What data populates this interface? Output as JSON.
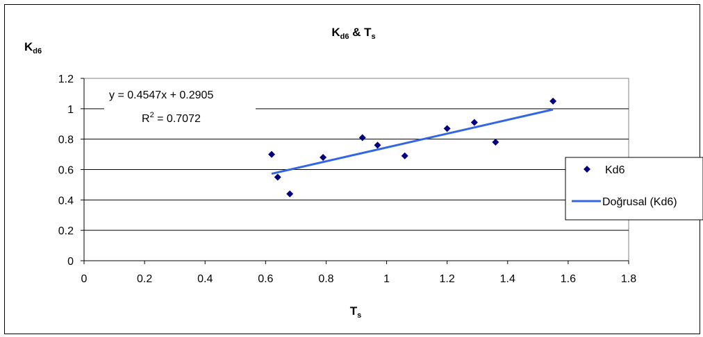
{
  "chart_data": {
    "type": "scatter",
    "title": {
      "main": "K",
      "sub": "d6",
      "rest": " & T",
      "sub2": "s"
    },
    "ylabel": {
      "main": "K",
      "sub": "d6"
    },
    "xlabel": {
      "main": "T",
      "sub": "s"
    },
    "xlim": [
      0,
      1.8
    ],
    "ylim": [
      0,
      1.2
    ],
    "xticks": [
      "0",
      "0.2",
      "0.4",
      "0.6",
      "0.8",
      "1",
      "1.2",
      "1.4",
      "1.6",
      "1.8"
    ],
    "yticks": [
      "0",
      "0.2",
      "0.4",
      "0.6",
      "0.8",
      "1",
      "1.2"
    ],
    "grid": "horizontal",
    "series": [
      {
        "name": "Kd6",
        "color": "#000080",
        "marker": "diamond",
        "points": [
          {
            "x": 0.62,
            "y": 0.7
          },
          {
            "x": 0.64,
            "y": 0.55
          },
          {
            "x": 0.68,
            "y": 0.44
          },
          {
            "x": 0.79,
            "y": 0.68
          },
          {
            "x": 0.92,
            "y": 0.81
          },
          {
            "x": 0.97,
            "y": 0.76
          },
          {
            "x": 1.06,
            "y": 0.69
          },
          {
            "x": 1.2,
            "y": 0.87
          },
          {
            "x": 1.29,
            "y": 0.91
          },
          {
            "x": 1.36,
            "y": 0.78
          },
          {
            "x": 1.55,
            "y": 1.05
          }
        ]
      }
    ],
    "trendline": {
      "name": "Doğrusal (Kd6)",
      "color": "#3366e6",
      "slope": 0.4547,
      "intercept": 0.2905,
      "x_range": [
        0.62,
        1.55
      ]
    },
    "equation": {
      "line1": "y = 0.4547x + 0.2905",
      "r_prefix": "R",
      "r_sup": "2",
      "r_suffix": " = 0.7072"
    },
    "legend": "right"
  }
}
